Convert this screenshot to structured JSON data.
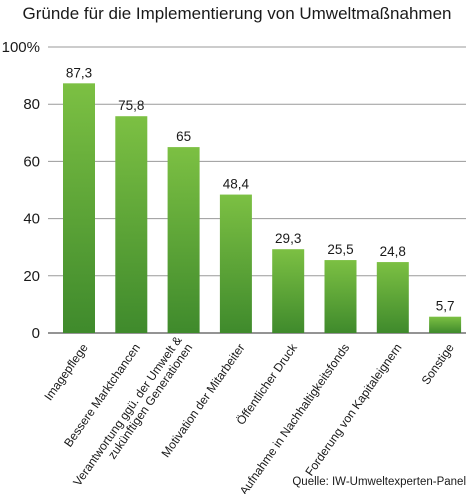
{
  "chart_data": {
    "type": "bar",
    "title": "Gründe für die Implementierung von Umweltmaßnahmen",
    "categories": [
      [
        "Imagepflege"
      ],
      [
        "Bessere Marktchancen"
      ],
      [
        "Verantwortung ggü. der Umwelt &",
        "zukünftigen Generationen"
      ],
      [
        "Motivation der Mitarbeiter"
      ],
      [
        "Öffentlicher Druck"
      ],
      [
        "Aufnahme in Nachhaltigkeitsfonds"
      ],
      [
        "Forderung von Kapitaleignern"
      ],
      [
        "Sonstige"
      ]
    ],
    "values": [
      87.3,
      75.8,
      65,
      48.4,
      29.3,
      25.5,
      24.8,
      5.7
    ],
    "value_labels": [
      "87,3",
      "75,8",
      "65",
      "48,4",
      "29,3",
      "25,5",
      "24,8",
      "5,7"
    ],
    "ylim": [
      0,
      100
    ],
    "yticks": [
      0,
      20,
      40,
      60,
      80,
      100
    ],
    "ytick_labels": [
      "0",
      "20",
      "40",
      "60",
      "80",
      "100%"
    ],
    "grid": true,
    "bar_color_top": "#7cc043",
    "bar_color_bottom": "#3f8a2c",
    "source": "Quelle: IW-Umweltexperten-Panel"
  }
}
